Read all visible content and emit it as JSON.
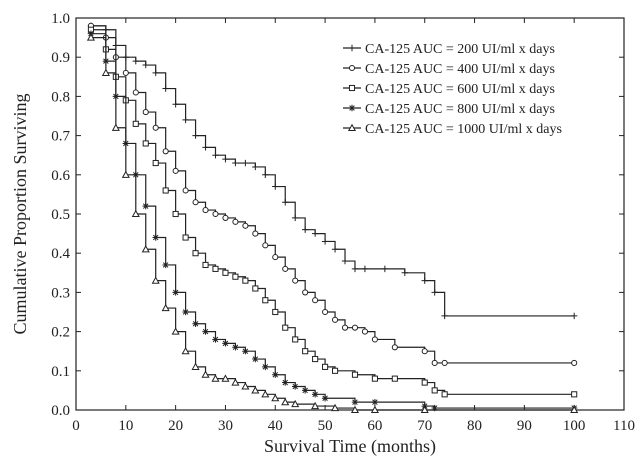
{
  "chart_data": {
    "type": "line",
    "title": "",
    "xlabel": "Survival Time (months)",
    "ylabel": "Cumulative Proportion Surviving",
    "xlim": [
      0,
      110
    ],
    "ylim": [
      0.0,
      1.0
    ],
    "xticks": [
      0,
      10,
      20,
      30,
      40,
      50,
      60,
      70,
      80,
      90,
      100,
      110
    ],
    "yticks": [
      0.0,
      0.1,
      0.2,
      0.3,
      0.4,
      0.5,
      0.6,
      0.7,
      0.8,
      0.9,
      1.0
    ],
    "xtick_labels": [
      "0",
      "10",
      "20",
      "30",
      "40",
      "50",
      "60",
      "70",
      "80",
      "90",
      "100",
      "110"
    ],
    "ytick_labels": [
      "0.0",
      "0.1",
      "0.2",
      "0.3",
      "0.4",
      "0.5",
      "0.6",
      "0.7",
      "0.8",
      "0.9",
      "1.0"
    ],
    "grid": false,
    "legend_position": "top-right",
    "step": true,
    "series": [
      {
        "name": "CA-125 AUC = 200 UI/ml x days",
        "marker": "plus",
        "x": [
          3,
          6,
          8,
          10,
          12,
          14,
          16,
          18,
          20,
          22,
          24,
          26,
          28,
          30,
          32,
          34,
          36,
          38,
          40,
          42,
          44,
          46,
          48,
          50,
          52,
          54,
          56,
          58,
          62,
          66,
          70,
          72,
          74,
          100
        ],
        "y": [
          0.98,
          0.97,
          0.93,
          0.9,
          0.89,
          0.88,
          0.86,
          0.82,
          0.78,
          0.74,
          0.7,
          0.67,
          0.65,
          0.64,
          0.63,
          0.63,
          0.62,
          0.6,
          0.57,
          0.53,
          0.49,
          0.46,
          0.45,
          0.43,
          0.41,
          0.38,
          0.36,
          0.36,
          0.36,
          0.35,
          0.33,
          0.3,
          0.24,
          0.24
        ]
      },
      {
        "name": "CA-125 AUC = 400 UI/ml x days",
        "marker": "circle",
        "x": [
          3,
          6,
          8,
          10,
          12,
          14,
          16,
          18,
          20,
          22,
          24,
          26,
          28,
          30,
          32,
          34,
          36,
          38,
          40,
          42,
          44,
          46,
          48,
          50,
          52,
          54,
          56,
          58,
          60,
          64,
          70,
          72,
          74,
          100
        ],
        "y": [
          0.98,
          0.95,
          0.9,
          0.86,
          0.81,
          0.76,
          0.72,
          0.66,
          0.61,
          0.56,
          0.53,
          0.51,
          0.5,
          0.49,
          0.48,
          0.47,
          0.45,
          0.42,
          0.39,
          0.36,
          0.33,
          0.3,
          0.28,
          0.25,
          0.23,
          0.21,
          0.21,
          0.2,
          0.18,
          0.16,
          0.15,
          0.12,
          0.12,
          0.12
        ]
      },
      {
        "name": "CA-125 AUC = 600 UI/ml x days",
        "marker": "square",
        "x": [
          3,
          6,
          8,
          10,
          12,
          14,
          16,
          18,
          20,
          22,
          24,
          26,
          28,
          30,
          32,
          34,
          36,
          38,
          40,
          42,
          44,
          46,
          48,
          50,
          52,
          56,
          60,
          64,
          70,
          72,
          74,
          100
        ],
        "y": [
          0.97,
          0.92,
          0.85,
          0.79,
          0.73,
          0.68,
          0.63,
          0.56,
          0.5,
          0.44,
          0.4,
          0.37,
          0.36,
          0.35,
          0.34,
          0.33,
          0.31,
          0.28,
          0.25,
          0.21,
          0.18,
          0.15,
          0.13,
          0.11,
          0.1,
          0.09,
          0.08,
          0.08,
          0.07,
          0.05,
          0.04,
          0.04
        ]
      },
      {
        "name": "CA-125 AUC = 800 UI/ml x days",
        "marker": "asterisk",
        "x": [
          3,
          6,
          8,
          10,
          12,
          14,
          16,
          18,
          20,
          22,
          24,
          26,
          28,
          30,
          32,
          34,
          36,
          38,
          40,
          42,
          44,
          46,
          48,
          50,
          56,
          60,
          70,
          72,
          100
        ],
        "y": [
          0.96,
          0.89,
          0.8,
          0.68,
          0.6,
          0.52,
          0.44,
          0.37,
          0.3,
          0.25,
          0.22,
          0.2,
          0.18,
          0.17,
          0.16,
          0.15,
          0.13,
          0.11,
          0.09,
          0.07,
          0.06,
          0.05,
          0.04,
          0.03,
          0.02,
          0.02,
          0.01,
          0.005,
          0.005
        ]
      },
      {
        "name": "CA-125 AUC = 1000 UI/ml x days",
        "marker": "triangle",
        "x": [
          3,
          6,
          8,
          10,
          12,
          14,
          16,
          18,
          20,
          22,
          24,
          26,
          28,
          30,
          32,
          34,
          36,
          38,
          40,
          42,
          44,
          48,
          52,
          56,
          60,
          70,
          100
        ],
        "y": [
          0.95,
          0.86,
          0.72,
          0.6,
          0.5,
          0.41,
          0.33,
          0.26,
          0.2,
          0.15,
          0.11,
          0.09,
          0.08,
          0.08,
          0.07,
          0.06,
          0.05,
          0.04,
          0.03,
          0.02,
          0.015,
          0.01,
          0.005,
          0.0,
          0.0,
          0.0,
          0.0
        ]
      }
    ]
  }
}
